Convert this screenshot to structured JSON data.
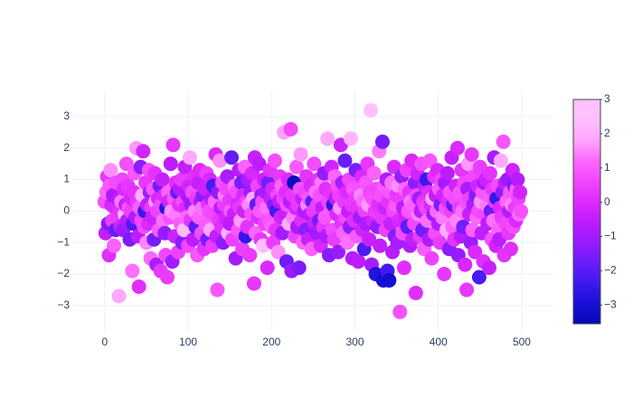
{
  "chart_data": {
    "type": "scatter",
    "xlim": [
      -38.9,
      538
    ],
    "ylim": [
      -3.78,
      3.83
    ],
    "xticks": [
      0,
      100,
      200,
      300,
      400,
      500
    ],
    "yticks": [
      {
        "value": -3,
        "label": "−3"
      },
      {
        "value": -2,
        "label": "−2"
      },
      {
        "value": -1,
        "label": "−1"
      },
      0,
      1,
      2,
      3
    ],
    "grid": true,
    "marker_size": 16,
    "colorscale": [
      "#0508b8",
      "#1910d8",
      "#3c19f0",
      "#6b1cfb",
      "#981cfd",
      "#bf1cfd",
      "#dd2bfd",
      "#f246fe",
      "#fc67fd",
      "#fea5fd",
      "#febefe",
      "#fec3fe"
    ],
    "clim": [
      -3.55,
      3
    ],
    "cticks": [
      {
        "value": -3,
        "label": "−3"
      },
      {
        "value": -2,
        "label": "−2"
      },
      {
        "value": -1,
        "label": "−1"
      },
      0,
      1,
      2,
      3
    ],
    "values": [
      0.3,
      -0.7,
      0.6,
      1.1,
      -0.4,
      -1.4,
      0.8,
      1.3,
      0.2,
      -0.3,
      0.5,
      -1.1,
      0.1,
      -0.6,
      0.9,
      -0.2,
      0.4,
      -2.7,
      0.0,
      -0.5,
      0.3,
      1.0,
      -0.6,
      0.7,
      -0.1,
      0.2,
      1.5,
      -0.3,
      0.8,
      0.1,
      -0.9,
      0.0,
      0.4,
      -1.9,
      -0.4,
      0.6,
      1.2,
      -0.2,
      2.0,
      0.3,
      -0.8,
      -2.4,
      0.1,
      1.4,
      -0.3,
      0.5,
      1.9,
      -0.5,
      0.0,
      0.9,
      -1.0,
      0.2,
      -0.4,
      1.3,
      0.6,
      -1.5,
      0.1,
      -0.2,
      0.7,
      -0.9,
      1.2,
      0.3,
      -1.7,
      0.0,
      0.4,
      -0.6,
      0.8,
      -1.9,
      0.2,
      1.0,
      -0.3,
      0.5,
      -0.7,
      -1.4,
      0.1,
      -2.1,
      0.6,
      0.3,
      -0.2,
      1.5,
      0.0,
      -1.6,
      2.1,
      0.4,
      -0.8,
      0.9,
      -0.1,
      0.6,
      -1.3,
      0.2,
      0.7,
      -0.4,
      1.0,
      -1.0,
      0.3,
      -0.6,
      1.4,
      0.1,
      -0.2,
      0.5,
      -1.1,
      0.8,
      1.7,
      -0.3,
      0.2,
      0.6,
      -0.9,
      1.1,
      0.0,
      -0.5,
      0.4,
      -1.4,
      0.9,
      -0.2,
      1.3,
      0.3,
      -0.7,
      0.1,
      0.5,
      -1.2,
      0.7,
      -0.4,
      1.2,
      -0.9,
      0.2,
      0.0,
      1.0,
      -0.6,
      0.4,
      -1.1,
      0.8,
      -0.1,
      0.3,
      1.8,
      -0.8,
      -2.5,
      0.6,
      -0.3,
      1.6,
      0.1,
      -0.5,
      0.9,
      -1.0,
      0.2,
      0.5,
      -0.2,
      0.7,
      1.1,
      -0.7,
      0.3,
      -0.4,
      0.0,
      1.7,
      -0.9,
      0.4,
      -0.1,
      0.8,
      -1.5,
      0.6,
      0.2,
      -0.6,
      1.3,
      0.1,
      -0.3,
      0.9,
      -1.2,
      0.5,
      0.0,
      1.4,
      -0.8,
      0.3,
      -0.5,
      1.0,
      0.2,
      -1.4,
      0.6,
      -0.1,
      1.2,
      0.4,
      -2.3,
      1.7,
      -0.7,
      0.2,
      0.8,
      -0.2,
      1.5,
      0.0,
      -0.9,
      0.5,
      0.3,
      -1.1,
      1.0,
      -0.4,
      0.6,
      0.1,
      -1.8,
      0.9,
      -0.3,
      1.3,
      0.4,
      -0.5,
      0.7,
      -1.0,
      0.2,
      1.6,
      -0.6,
      0.0,
      0.5,
      -1.3,
      0.3,
      1.1,
      -0.2,
      0.8,
      -0.7,
      0.4,
      2.5,
      -0.1,
      0.6,
      -1.6,
      0.2,
      1.0,
      -0.4,
      0.3,
      2.6,
      -1.9,
      0.5,
      -0.2,
      0.9,
      -0.8,
      0.1,
      1.4,
      -0.5,
      0.2,
      -1.8,
      0.7,
      1.8,
      -0.3,
      0.4,
      -1.0,
      0.0,
      0.6,
      -0.6,
      1.1,
      0.2,
      -0.9,
      0.4,
      -0.1,
      0.8,
      -1.2,
      0.3,
      0.0,
      1.5,
      -0.4,
      0.6,
      -0.7,
      0.2,
      1.0,
      -0.3,
      0.5,
      -1.1,
      0.9,
      0.1,
      -0.5,
      1.2,
      -0.2,
      0.7,
      -0.8,
      2.3,
      0.3,
      -1.4,
      0.6,
      0.0,
      1.4,
      -0.6,
      0.2,
      -0.9,
      1.1,
      0.4,
      -0.1,
      0.8,
      -1.3,
      0.5,
      0.1,
      2.1,
      -0.4,
      0.9,
      -0.7,
      0.3,
      1.6,
      -0.2,
      0.6,
      -1.0,
      0.0,
      1.0,
      -0.5,
      2.3,
      0.2,
      -1.5,
      0.7,
      -0.3,
      0.4,
      1.3,
      -0.8,
      0.1,
      -1.6,
      0.8,
      -0.2,
      0.5,
      1.1,
      -0.6,
      0.3,
      -1.2,
      0.0,
      0.9,
      -0.4,
      1.5,
      0.2,
      -0.9,
      0.6,
      3.2,
      -1.7,
      0.4,
      -0.3,
      1.2,
      0.0,
      -2.0,
      0.7,
      -0.5,
      0.2,
      1.9,
      -1.1,
      0.5,
      -0.2,
      2.2,
      -2.2,
      0.8,
      0.1,
      -0.6,
      1.0,
      -1.9,
      0.3,
      -2.2,
      0.6,
      -0.4,
      0.9,
      -1.3,
      0.0,
      1.4,
      -0.8,
      0.2,
      0.5,
      -1.0,
      0.8,
      -0.3,
      -3.2,
      0.4,
      1.1,
      -0.7,
      0.1,
      -1.8,
      0.7,
      -0.2,
      1.3,
      -0.5,
      0.0,
      0.6,
      -1.1,
      0.3,
      1.6,
      -0.9,
      0.2,
      -0.4,
      0.9,
      -2.6,
      0.5,
      1.2,
      -0.1,
      0.4,
      -0.8,
      0.0,
      1.5,
      -0.6,
      0.3,
      -1.2,
      0.8,
      0.1,
      1.0,
      -0.3,
      0.6,
      -0.9,
      1.6,
      0.2,
      -1.5,
      0.4,
      -0.1,
      1.1,
      -0.7,
      0.5,
      0.0,
      1.3,
      -0.4,
      0.7,
      -1.0,
      0.2,
      1.0,
      -0.2,
      0.5,
      -2.0,
      0.9,
      0.1,
      -0.6,
      1.2,
      0.3,
      -1.2,
      0.6,
      0.0,
      1.7,
      -0.5,
      0.2,
      -0.9,
      0.4,
      0.8,
      -0.3,
      2.0,
      -1.4,
      0.1,
      0.6,
      -0.8,
      1.3,
      0.0,
      -0.5,
      0.9,
      -1.7,
      0.3,
      -2.5,
      0.7,
      1.5,
      -0.1,
      0.4,
      -1.0,
      1.8,
      -0.6,
      0.2,
      1.1,
      -1.3,
      0.5,
      -0.2,
      0.8,
      0.0,
      -2.1,
      1.4,
      0.3,
      -0.7,
      0.6,
      -1.6,
      0.9,
      -0.1,
      1.0,
      0.2,
      -0.4,
      0.5,
      -1.8,
      1.2,
      0.0,
      -0.9,
      0.7,
      -0.3,
      1.7,
      0.3,
      -1.1,
      0.4,
      0.8,
      -0.6,
      -0.9,
      0.1,
      1.6,
      -0.2,
      0.6,
      2.2,
      -1.4,
      0.9,
      -0.4,
      0.3,
      1.0,
      -0.7,
      0.0,
      0.6,
      -1.2,
      0.2,
      1.3,
      -0.5,
      0.8,
      0.1,
      -0.3,
      0.7,
      1.0,
      0.4,
      -0.1,
      0.6,
      0.0
    ],
    "color_values": [
      0.8,
      -0.5,
      1.2,
      0.3,
      -1.4,
      0.1,
      0.9,
      1.6,
      -0.2,
      0.5,
      -0.9,
      1.1,
      0.0,
      -1.8,
      0.7,
      0.4,
      -0.6,
      1.9,
      0.2,
      -0.3,
      1.4,
      0.6,
      -1.1,
      0.0,
      2.2,
      -0.4,
      0.8,
      -0.7,
      0.3,
      1.0,
      -1.5,
      0.5,
      -0.1,
      1.3,
      -2.1,
      0.2,
      0.9,
      -0.8,
      1.7,
      0.4,
      -0.6,
      0.1,
      1.1,
      -1.3,
      0.6,
      2.0,
      -0.2,
      0.7,
      -2.4,
      0.3,
      1.5,
      -0.5,
      0.0,
      0.8,
      -1.0,
      1.2,
      0.4,
      -0.3,
      0.9,
      -1.6,
      0.2,
      1.8,
      -0.9,
      0.5,
      -0.1,
      1.0,
      -1.7,
      0.3,
      0.7,
      -0.4,
      1.3,
      0.0,
      -1.2,
      0.6,
      -2.7,
      0.4,
      1.1,
      -0.2,
      0.8,
      -0.6,
      1.6,
      -1.0,
      0.3,
      0.9,
      -0.3,
      0.1,
      1.4,
      -1.9,
      0.5,
      0.2,
      -0.7,
      1.0,
      0.4,
      -1.3,
      0.7,
      2.3,
      -0.5,
      0.0,
      1.2,
      -0.8,
      0.6,
      -0.2,
      1.9,
      0.3,
      -1.1,
      0.8,
      -0.6,
      0.1,
      1.5,
      -2.0,
      0.4,
      0.9,
      -0.4,
      1.1,
      0.0,
      -0.9,
      0.7,
      1.3,
      -1.4,
      0.2,
      -0.3,
      1.0,
      0.5,
      -1.6,
      0.2,
      0.7,
      -0.1,
      1.8,
      -0.8,
      0.4,
      -2.2,
      0.6,
      1.2,
      0.0,
      -0.5,
      0.9,
      -1.2,
      0.3,
      1.6,
      -0.7,
      0.1,
      0.8,
      -1.3,
      0.4,
      1.4,
      -0.2,
      0.6,
      -0.9,
      2.1,
      0.3,
      -0.6,
      1.0,
      -1.8,
      0.5,
      0.2,
      -0.4,
      1.3,
      -1.0,
      0.7,
      0.0,
      0.9,
      -0.7,
      0.3,
      1.7,
      -1.5,
      0.5,
      0.0,
      -0.3,
      1.1,
      -2.5,
      0.6,
      0.2,
      -0.8,
      1.5,
      0.4,
      -1.1,
      0.8,
      -0.1,
      1.9,
      0.3,
      -0.4,
      1.2,
      -1.9,
      0.6,
      0.1,
      -0.6,
      1.0,
      0.3,
      -1.2,
      0.7,
      2.4,
      -0.3,
      0.5,
      -0.9,
      1.3,
      0.0,
      -1.6,
      0.9,
      0.2,
      -0.5,
      1.1,
      -0.1,
      0.4,
      -1.4,
      0.8,
      0.2,
      -2.3,
      0.6,
      1.6,
      -0.7,
      0.3,
      -0.2,
      1.2,
      -1.0,
      0.5,
      1.8,
      -0.4,
      0.1,
      -1.7,
      0.9,
      0.0,
      2.0,
      -0.6,
      0.7,
      -1.1,
      0.3,
      1.4,
      -3.4,
      0.5,
      -0.2,
      1.0,
      -0.9,
      0.4,
      -1.5,
      0.8,
      1.7,
      0.1,
      -0.5,
      1.2,
      -0.8,
      0.6,
      -1.3,
      0.2,
      1.5,
      -0.4,
      0.9,
      -0.7,
      0.0,
      1.1,
      -2.0,
      0.4,
      0.7,
      -0.3,
      1.3,
      -1.0,
      0.5,
      0.2,
      -1.6,
      0.8,
      -0.1,
      1.4,
      -0.5,
      0.3,
      -1.2,
      0.9,
      0.1,
      -0.8,
      1.9,
      0.6,
      -1.4,
      0.2,
      1.0,
      -0.2,
      0.7,
      -2.6,
      0.4,
      1.2,
      -0.6,
      0.0,
      0.8,
      -1.1,
      0.5,
      1.6,
      -0.3,
      0.2,
      -0.9,
      1.1,
      0.4,
      -1.8,
      0.7,
      0.0,
      1.3,
      -0.5,
      0.6,
      -1.3,
      2.2,
      0.3,
      -0.7,
      0.9,
      0.1,
      0.4,
      -1.5,
      1.0,
      0.2,
      -0.6,
      0.8,
      -1.0,
      1.5,
      0.0,
      -0.3,
      1.2,
      -2.1,
      0.5,
      0.9,
      -0.8,
      0.3,
      1.7,
      -0.4,
      0.6,
      2.8,
      -0.9,
      0.7,
      -0.2,
      1.1,
      0.4,
      -2.8,
      0.6,
      -1.2,
      0.1,
      1.4,
      -0.5,
      0.8,
      0.3,
      -1.6,
      -3.0,
      1.0,
      -0.3,
      0.5,
      -0.8,
      -2.3,
      0.2,
      -3.1,
      0.9,
      -0.4,
      1.3,
      -0.7,
      0.6,
      0.0,
      -1.4,
      1.0,
      0.3,
      -0.9,
      1.6,
      -0.1,
      0.8,
      0.4,
      -1.2,
      0.7,
      -0.6,
      0.1,
      1.2,
      -0.3,
      0.5,
      -1.9,
      0.9,
      0.2,
      -0.8,
      1.4,
      0.0,
      -0.5,
      1.1,
      0.6,
      -1.3,
      0.1,
      0.7,
      -0.2,
      1.5,
      -1.0,
      0.4,
      -0.6,
      0.8,
      -1.7,
      0.3,
      1.0,
      -0.4,
      0.6,
      -2.4,
      1.3,
      0.1,
      -0.8,
      0.9,
      -0.1,
      0.5,
      1.8,
      -1.1,
      0.2,
      0.7,
      -0.5,
      1.2,
      0.0,
      -0.7,
      1.0,
      0.4,
      -1.5,
      0.6,
      1.4,
      -0.2,
      0.3,
      -1.0,
      0.8,
      2.0,
      -0.6,
      0.1,
      -1.3,
      0.9,
      0.5,
      -0.4,
      1.1,
      -2.0,
      0.2,
      0.7,
      -0.3,
      1.5,
      0.0,
      -1.2,
      0.4,
      0.9,
      -0.7,
      0.2,
      1.3,
      -1.6,
      0.6,
      -0.1,
      0.8,
      0.3,
      -0.9,
      1.7,
      -0.4,
      0.5,
      -1.1,
      0.3,
      1.1,
      -0.8,
      0.6,
      0.0,
      -1.4,
      1.2,
      -0.2,
      0.7,
      -2.2,
      0.4,
      1.6,
      -0.5,
      0.9,
      0.1,
      -1.0,
      0.6,
      -0.3,
      1.4,
      -0.6,
      1.0,
      -0.4,
      0.2,
      -1.8,
      0.8,
      0.3,
      1.3,
      -0.9,
      0.5,
      -0.2,
      -2.5,
      0.7,
      1.1,
      -0.6,
      0.0,
      1.9,
      0.4,
      -1.2,
      0.9,
      0.2,
      -0.5,
      0.6,
      1.2,
      -1.1,
      0.3,
      -0.8,
      0.9,
      0.1,
      1.5,
      -0.3,
      0.7,
      -1.6,
      0.4,
      0.0,
      1.0,
      -0.7,
      0.5,
      1.3,
      -0.2,
      0.8
    ]
  }
}
